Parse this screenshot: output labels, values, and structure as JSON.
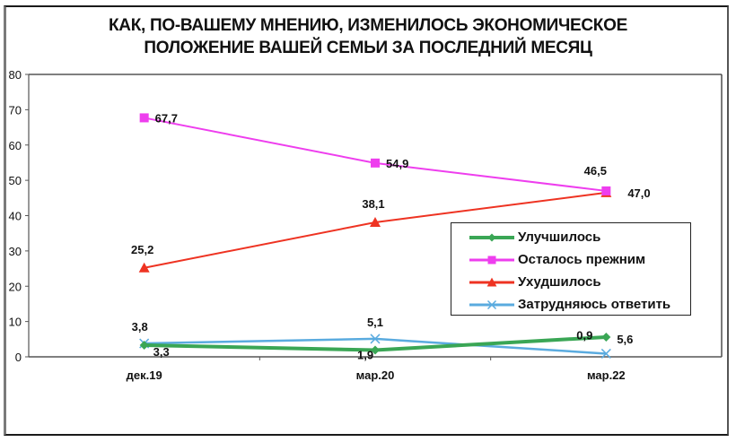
{
  "title": {
    "line1": "КАК, ПО-ВАШЕМУ МНЕНИЮ, ИЗМЕНИЛОСЬ ЭКОНОМИЧЕСКОЕ",
    "line2": "ПОЛОЖЕНИЕ ВАШЕЙ СЕМЬИ ЗА ПОСЛЕДНИЙ МЕСЯЦ"
  },
  "legend": {
    "items": [
      {
        "label": "Улучшилось",
        "color": "#3aa655",
        "marker": "diamond"
      },
      {
        "label": "Осталось прежним",
        "color": "#ee3eee",
        "marker": "square"
      },
      {
        "label": "Ухудшилось",
        "color": "#ee3322",
        "marker": "triangle"
      },
      {
        "label": "Затрудняюсь ответить",
        "color": "#5aabdf",
        "marker": "x"
      }
    ]
  },
  "chart_data": {
    "type": "line",
    "title": "КАК, ПО-ВАШЕМУ МНЕНИЮ, ИЗМЕНИЛОСЬ ЭКОНОМИЧЕСКОЕ ПОЛОЖЕНИЕ ВАШЕЙ СЕМЬИ ЗА ПОСЛЕДНИЙ МЕСЯЦ",
    "xlabel": "",
    "ylabel": "",
    "categories": [
      "дек.19",
      "мар.20",
      "мар.22"
    ],
    "ylim": [
      0,
      80
    ],
    "yticks": [
      0,
      10,
      20,
      30,
      40,
      50,
      60,
      70,
      80
    ],
    "grid": false,
    "legend_position": "right-inside",
    "series": [
      {
        "name": "Улучшилось",
        "values": [
          3.3,
          1.9,
          5.6
        ],
        "labels": [
          "3,3",
          "1,9",
          "5,6"
        ],
        "color": "#3aa655",
        "marker": "diamond"
      },
      {
        "name": "Осталось прежним",
        "values": [
          67.7,
          54.9,
          47.0
        ],
        "labels": [
          "67,7",
          "54,9",
          "47,0"
        ],
        "color": "#ee3eee",
        "marker": "square"
      },
      {
        "name": "Ухудшилось",
        "values": [
          25.2,
          38.1,
          46.5
        ],
        "labels": [
          "25,2",
          "38,1",
          "46,5"
        ],
        "color": "#ee3322",
        "marker": "triangle"
      },
      {
        "name": "Затрудняюсь ответить",
        "values": [
          3.8,
          5.1,
          0.9
        ],
        "labels": [
          "3,8",
          "5,1",
          "0,9"
        ],
        "color": "#5aabdf",
        "marker": "x"
      }
    ]
  }
}
